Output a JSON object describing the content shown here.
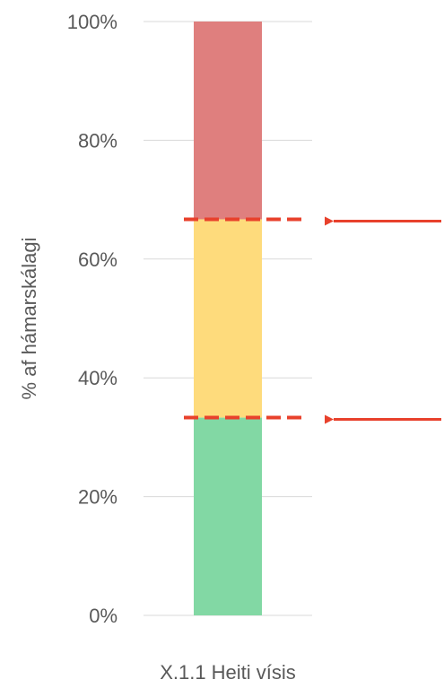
{
  "chart_data": {
    "type": "bar",
    "orientation": "vertical-stacked",
    "categories": [
      "X.1.1 Heiti vísis"
    ],
    "series": [
      {
        "values": [
          33.3
        ],
        "color": "#82d8a4"
      },
      {
        "values": [
          33.4
        ],
        "color": "#fedb7c"
      },
      {
        "values": [
          33.3
        ],
        "color": "#df7f7e"
      }
    ],
    "ylabel": "% af hámarskálagi",
    "xlabel": "",
    "ylim": [
      0,
      100
    ],
    "yticks": [
      "0%",
      "20%",
      "40%",
      "60%",
      "80%",
      "100%"
    ],
    "ytick_values": [
      0,
      20,
      40,
      60,
      80,
      100
    ],
    "grid": true,
    "thresholds": [
      {
        "value": 66.7,
        "color": "#e8412c",
        "style": "dashed",
        "arrow": true
      },
      {
        "value": 33.3,
        "color": "#e8412c",
        "style": "dashed",
        "arrow": true
      }
    ]
  }
}
